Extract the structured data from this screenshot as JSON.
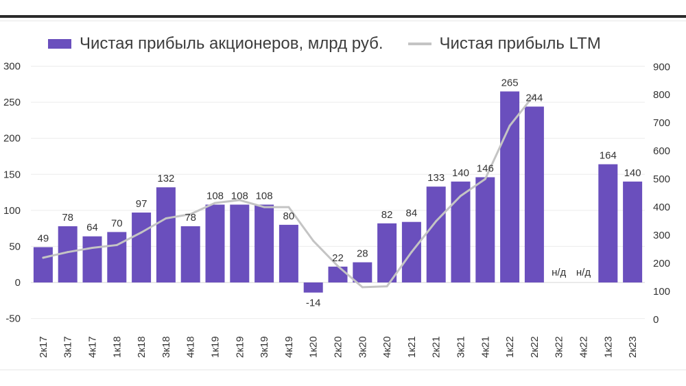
{
  "chart_data": {
    "type": "bar",
    "title": "",
    "legend": {
      "bar_series": "Чистая прибыль акционеров, млрд руб.",
      "line_series": "Чистая прибыль LTM",
      "placement": "top"
    },
    "categories": [
      "2к17",
      "3к17",
      "4к17",
      "1к18",
      "2к18",
      "3к18",
      "4к18",
      "1к19",
      "2к19",
      "3к19",
      "4к19",
      "1к20",
      "2к20",
      "3к20",
      "4к20",
      "1к21",
      "2к21",
      "3к21",
      "4к21",
      "1к22",
      "2к22",
      "3к22",
      "4к22",
      "1к23",
      "2к23"
    ],
    "series": [
      {
        "name": "Чистая прибыль акционеров, млрд руб.",
        "type": "bar",
        "axis": "left",
        "values": [
          49,
          78,
          64,
          70,
          97,
          132,
          78,
          108,
          108,
          108,
          80,
          -14,
          22,
          28,
          82,
          84,
          133,
          140,
          146,
          265,
          244,
          null,
          null,
          164,
          140
        ],
        "labels": [
          "49",
          "78",
          "64",
          "70",
          "97",
          "132",
          "78",
          "108",
          "108",
          "108",
          "80",
          "-14",
          "22",
          "28",
          "82",
          "84",
          "133",
          "140",
          "146",
          "265",
          "244",
          "н/д",
          "н/д",
          "164",
          "140"
        ]
      },
      {
        "name": "Чистая прибыль LTM",
        "type": "line",
        "axis": "right",
        "values": [
          220,
          240,
          255,
          265,
          310,
          360,
          375,
          415,
          425,
          400,
          400,
          280,
          190,
          115,
          118,
          240,
          350,
          440,
          500,
          690,
          800,
          null,
          null,
          null,
          null
        ]
      }
    ],
    "y_left": {
      "min": -50,
      "max": 300,
      "ticks": [
        300,
        250,
        200,
        150,
        100,
        50,
        0,
        -50
      ]
    },
    "y_right": {
      "min": 0,
      "max": 900,
      "ticks": [
        900,
        800,
        700,
        600,
        500,
        400,
        300,
        200,
        100,
        0
      ]
    },
    "grid": true,
    "colors": {
      "bar": "#6a4fbd",
      "line": "#c4c4c4"
    }
  }
}
